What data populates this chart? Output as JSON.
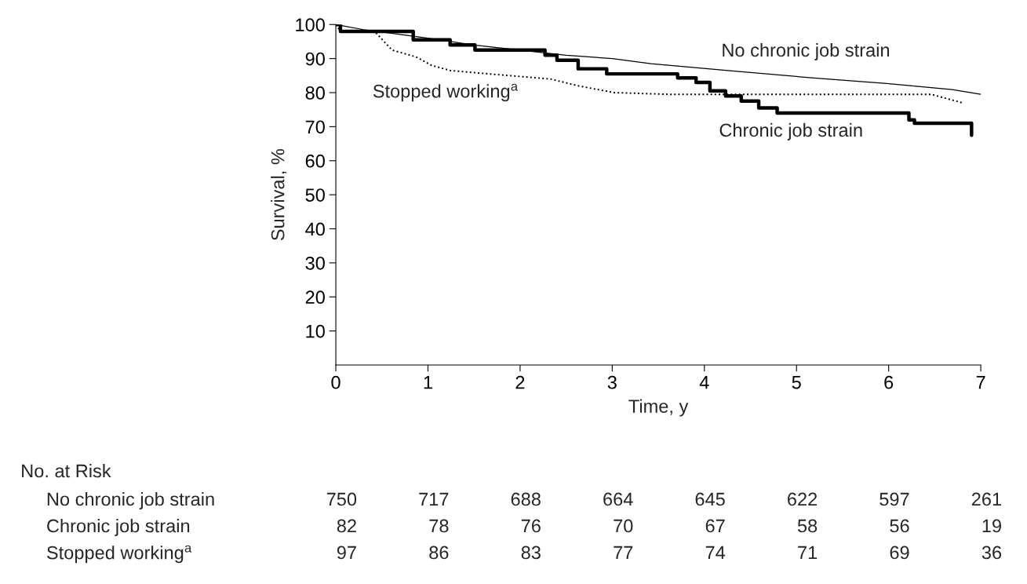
{
  "chart_data": {
    "type": "step",
    "xlabel": "Time, y",
    "ylabel": "Survival, %",
    "xlim": [
      0,
      7
    ],
    "ylim": [
      0,
      100
    ],
    "xticks": [
      0,
      1,
      2,
      3,
      4,
      5,
      6,
      7
    ],
    "yticks": [
      10,
      20,
      30,
      40,
      50,
      60,
      70,
      80,
      90,
      100
    ],
    "grid": false,
    "legend": false,
    "series": [
      {
        "name": "No chronic job strain",
        "type": "line",
        "color": "#000000",
        "line_style": "solid",
        "x": [
          0,
          0.3,
          1,
          1.5,
          2,
          2.5,
          3,
          3.42,
          4.28,
          5.19,
          5.98,
          6.69,
          7
        ],
        "values": [
          100,
          98.5,
          96,
          94,
          92.5,
          91,
          90,
          88.5,
          86.4,
          84.3,
          82.7,
          80.9,
          79.5
        ]
      },
      {
        "name": "Chronic job strain",
        "color": "#000000",
        "line_style": "solid",
        "x": [
          0,
          0.05,
          0.84,
          1.24,
          1.51,
          2.27,
          2.4,
          2.63,
          2.94,
          3.71,
          3.91,
          4.06,
          4.23,
          4.4,
          4.59,
          4.79,
          6.22,
          6.28,
          6.9,
          6.9
        ],
        "values": [
          100,
          98,
          95.5,
          94,
          92.5,
          91,
          89.5,
          87,
          85.5,
          84.3,
          83,
          80.5,
          79,
          77.5,
          75.5,
          74,
          72,
          71,
          71,
          67.5
        ]
      },
      {
        "name": "Stopped working$^{a}$",
        "type": "line",
        "color": "#000000",
        "line_style": "dotted",
        "x": [
          0,
          0.05,
          0.42,
          0.61,
          0.87,
          1.04,
          1.24,
          1.66,
          2.33,
          2.63,
          3.02,
          3.61,
          6.46,
          6.8
        ],
        "values": [
          100,
          98,
          98,
          92.5,
          90.5,
          88,
          86.5,
          85.5,
          84,
          82,
          80,
          79.5,
          79.5,
          77
        ]
      }
    ],
    "annotations": [
      "No. at Risk",
      "No chronic job strain",
      "750",
      "717",
      "688",
      "664",
      "645",
      "622",
      "597",
      "261",
      "Chronic job strain",
      "82",
      "78",
      "76",
      "70",
      "67",
      "58",
      "56",
      "19",
      "Stopped working$^{a}$",
      "97",
      "86",
      "83",
      "77",
      "74",
      "71",
      "69",
      "36"
    ]
  }
}
